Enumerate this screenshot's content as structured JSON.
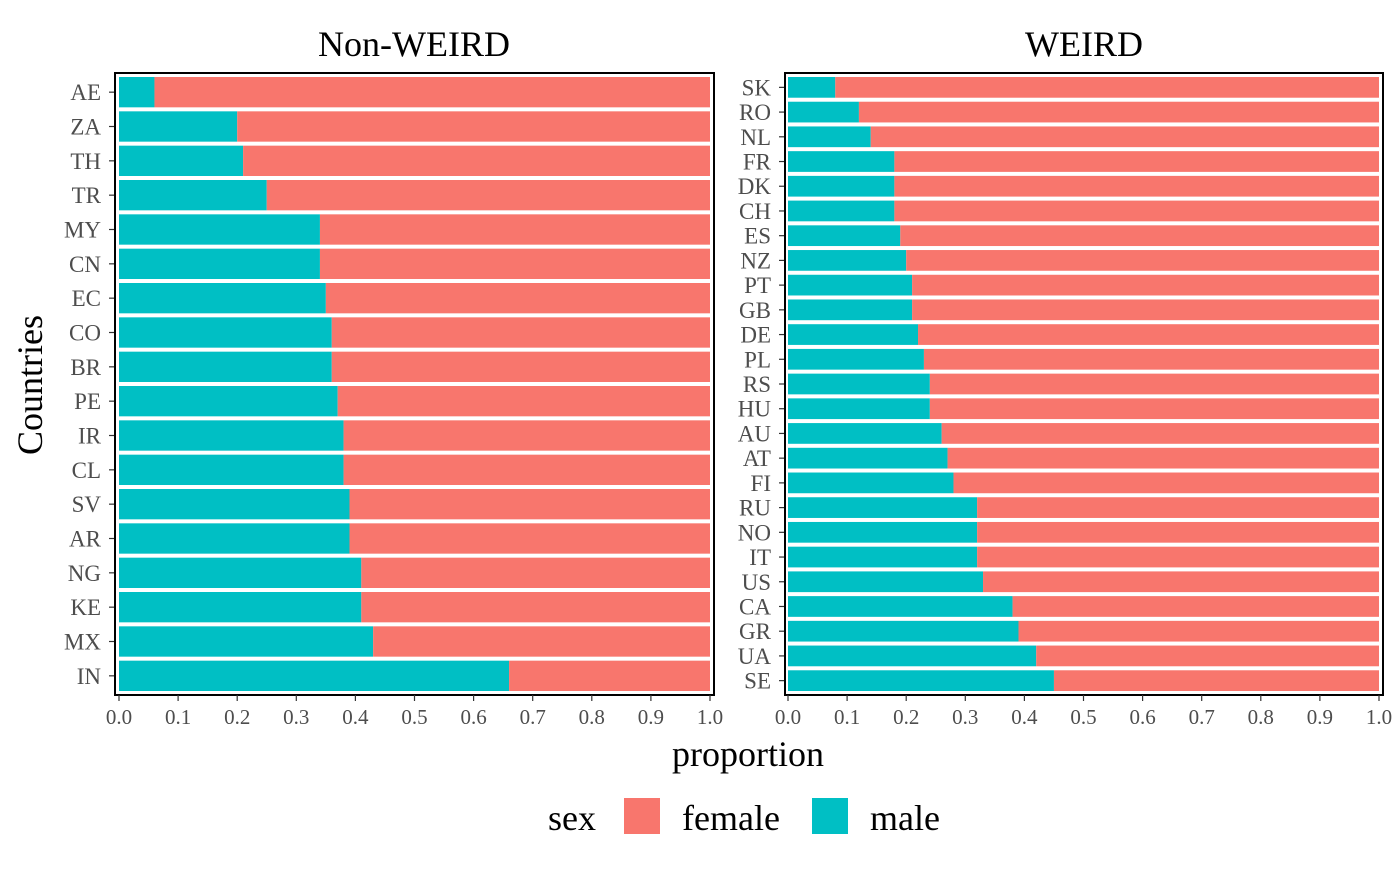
{
  "chart_data": {
    "type": "bar",
    "orientation": "horizontal",
    "stacked": true,
    "xlabel": "proportion",
    "ylabel": "Countries",
    "xlim": [
      0,
      1
    ],
    "x_ticks": [
      "0.0",
      "0.1",
      "0.2",
      "0.3",
      "0.4",
      "0.5",
      "0.6",
      "0.7",
      "0.8",
      "0.9",
      "1.0"
    ],
    "grid": false,
    "legend": {
      "title": "sex",
      "position": "bottom",
      "items": [
        {
          "label": "female",
          "color": "#F8766D"
        },
        {
          "label": "male",
          "color": "#00BFC4"
        }
      ]
    },
    "panels": [
      {
        "title": "Non-WEIRD",
        "categories": [
          "AE",
          "ZA",
          "TH",
          "TR",
          "MY",
          "CN",
          "EC",
          "CO",
          "BR",
          "PE",
          "IR",
          "CL",
          "SV",
          "AR",
          "NG",
          "KE",
          "MX",
          "IN"
        ],
        "male": [
          0.06,
          0.2,
          0.21,
          0.25,
          0.34,
          0.34,
          0.35,
          0.36,
          0.36,
          0.37,
          0.38,
          0.38,
          0.39,
          0.39,
          0.41,
          0.41,
          0.43,
          0.66
        ],
        "female": [
          0.94,
          0.8,
          0.79,
          0.75,
          0.66,
          0.66,
          0.65,
          0.64,
          0.64,
          0.63,
          0.62,
          0.62,
          0.61,
          0.61,
          0.59,
          0.59,
          0.57,
          0.34
        ]
      },
      {
        "title": "WEIRD",
        "categories": [
          "SK",
          "RO",
          "NL",
          "FR",
          "DK",
          "CH",
          "ES",
          "NZ",
          "PT",
          "GB",
          "DE",
          "PL",
          "RS",
          "HU",
          "AU",
          "AT",
          "FI",
          "RU",
          "NO",
          "IT",
          "US",
          "CA",
          "GR",
          "UA",
          "SE"
        ],
        "male": [
          0.08,
          0.12,
          0.14,
          0.18,
          0.18,
          0.18,
          0.19,
          0.2,
          0.21,
          0.21,
          0.22,
          0.23,
          0.24,
          0.24,
          0.26,
          0.27,
          0.28,
          0.32,
          0.32,
          0.32,
          0.33,
          0.38,
          0.39,
          0.42,
          0.45
        ],
        "female": [
          0.92,
          0.88,
          0.86,
          0.82,
          0.82,
          0.82,
          0.81,
          0.8,
          0.79,
          0.79,
          0.78,
          0.77,
          0.76,
          0.76,
          0.74,
          0.73,
          0.72,
          0.68,
          0.68,
          0.68,
          0.67,
          0.62,
          0.61,
          0.58,
          0.55
        ]
      }
    ]
  }
}
